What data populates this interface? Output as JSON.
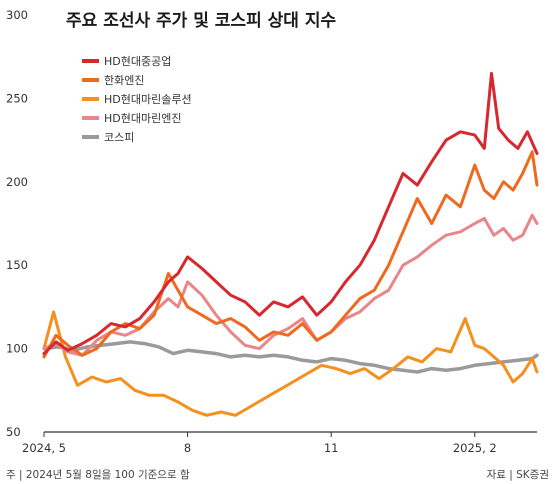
{
  "chart_data": {
    "type": "line",
    "title": "주요 조선사 주가 및 코스피 상대 지수",
    "ylim": [
      50,
      300
    ],
    "yticks": [
      50,
      100,
      150,
      200,
      250,
      300
    ],
    "xticks": [
      {
        "label": "2024, 5",
        "x": 0
      },
      {
        "label": "8",
        "x": 3
      },
      {
        "label": "11",
        "x": 6
      },
      {
        "label": "2025, 2",
        "x": 9
      }
    ],
    "x_range": [
      0,
      10.3
    ],
    "footnote": "주 | 2024년 5월 8일을 100 기준으로 함",
    "source": "자료 | SK증권",
    "series": [
      {
        "name": "HD현대중공업",
        "color": "#d7282f",
        "x": [
          0,
          0.25,
          0.5,
          0.8,
          1.1,
          1.4,
          1.7,
          2.0,
          2.3,
          2.6,
          2.8,
          3.0,
          3.3,
          3.6,
          3.9,
          4.2,
          4.5,
          4.8,
          5.1,
          5.4,
          5.7,
          6.0,
          6.3,
          6.6,
          6.9,
          7.2,
          7.5,
          7.8,
          8.1,
          8.4,
          8.7,
          9.0,
          9.2,
          9.35,
          9.5,
          9.7,
          9.9,
          10.1,
          10.3
        ],
        "y": [
          97,
          104,
          99,
          103,
          108,
          115,
          113,
          118,
          128,
          140,
          145,
          155,
          148,
          140,
          132,
          128,
          120,
          128,
          125,
          131,
          120,
          128,
          140,
          150,
          165,
          185,
          205,
          198,
          212,
          225,
          230,
          228,
          220,
          265,
          232,
          225,
          220,
          230,
          217
        ]
      },
      {
        "name": "한화엔진",
        "color": "#ee6a1e",
        "x": [
          0,
          0.25,
          0.5,
          0.8,
          1.1,
          1.4,
          1.7,
          2.0,
          2.3,
          2.6,
          2.8,
          3.0,
          3.3,
          3.6,
          3.9,
          4.2,
          4.5,
          4.8,
          5.1,
          5.4,
          5.7,
          6.0,
          6.3,
          6.6,
          6.9,
          7.2,
          7.5,
          7.8,
          8.1,
          8.4,
          8.7,
          9.0,
          9.2,
          9.4,
          9.6,
          9.8,
          10.0,
          10.2,
          10.3
        ],
        "y": [
          95,
          108,
          102,
          96,
          100,
          110,
          115,
          112,
          120,
          145,
          135,
          125,
          120,
          115,
          118,
          113,
          105,
          110,
          108,
          115,
          105,
          110,
          120,
          130,
          135,
          150,
          170,
          190,
          175,
          192,
          185,
          210,
          195,
          190,
          200,
          195,
          205,
          218,
          198
        ]
      },
      {
        "name": "HD현대마린솔루션",
        "color": "#f5901e",
        "x": [
          0,
          0.2,
          0.45,
          0.7,
          1.0,
          1.3,
          1.6,
          1.9,
          2.2,
          2.5,
          2.8,
          3.1,
          3.4,
          3.7,
          4.0,
          4.3,
          4.6,
          4.9,
          5.2,
          5.5,
          5.8,
          6.1,
          6.4,
          6.7,
          7.0,
          7.3,
          7.6,
          7.9,
          8.2,
          8.5,
          8.8,
          9.0,
          9.2,
          9.4,
          9.6,
          9.8,
          10.0,
          10.2,
          10.3
        ],
        "y": [
          100,
          122,
          95,
          78,
          83,
          80,
          82,
          75,
          72,
          72,
          68,
          63,
          60,
          62,
          60,
          65,
          70,
          75,
          80,
          85,
          90,
          88,
          85,
          88,
          82,
          88,
          95,
          92,
          100,
          98,
          118,
          102,
          100,
          95,
          90,
          80,
          85,
          94,
          86
        ]
      },
      {
        "name": "HD현대마린엔진",
        "color": "#e8868a",
        "x": [
          0,
          0.25,
          0.5,
          0.8,
          1.1,
          1.4,
          1.7,
          2.0,
          2.3,
          2.6,
          2.8,
          3.0,
          3.3,
          3.6,
          3.9,
          4.2,
          4.5,
          4.8,
          5.1,
          5.4,
          5.7,
          6.0,
          6.3,
          6.6,
          6.9,
          7.2,
          7.5,
          7.8,
          8.1,
          8.4,
          8.7,
          9.0,
          9.2,
          9.4,
          9.6,
          9.8,
          10.0,
          10.2,
          10.3
        ],
        "y": [
          100,
          103,
          98,
          96,
          105,
          110,
          108,
          112,
          122,
          130,
          125,
          140,
          132,
          120,
          110,
          102,
          100,
          108,
          112,
          118,
          105,
          110,
          118,
          122,
          130,
          135,
          150,
          155,
          162,
          168,
          170,
          175,
          178,
          168,
          172,
          165,
          168,
          180,
          175
        ]
      },
      {
        "name": "코스피",
        "color": "#9a9a9a",
        "x": [
          0,
          0.3,
          0.6,
          0.9,
          1.2,
          1.5,
          1.8,
          2.1,
          2.4,
          2.7,
          3.0,
          3.3,
          3.6,
          3.9,
          4.2,
          4.5,
          4.8,
          5.1,
          5.4,
          5.7,
          6.0,
          6.3,
          6.6,
          6.9,
          7.2,
          7.5,
          7.8,
          8.1,
          8.4,
          8.7,
          9.0,
          9.3,
          9.6,
          9.9,
          10.2,
          10.3
        ],
        "y": [
          100,
          101,
          99,
          101,
          102,
          103,
          104,
          103,
          101,
          97,
          99,
          98,
          97,
          95,
          96,
          95,
          96,
          95,
          93,
          92,
          94,
          93,
          91,
          90,
          88,
          87,
          86,
          88,
          87,
          88,
          90,
          91,
          92,
          93,
          94,
          96
        ]
      }
    ],
    "legend_position": "top-left"
  }
}
